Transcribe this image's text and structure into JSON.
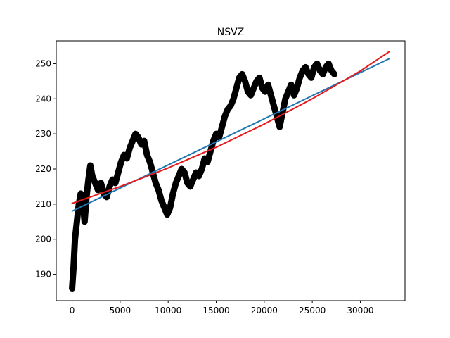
{
  "chart_data": {
    "type": "line",
    "title": "NSVZ",
    "xlabel": "",
    "ylabel": "",
    "xlim": [
      -1650,
      34650
    ],
    "ylim": [
      182.5,
      256.5
    ],
    "xticks": [
      0,
      5000,
      10000,
      15000,
      20000,
      25000,
      30000
    ],
    "yticks": [
      190,
      200,
      210,
      220,
      230,
      240,
      250
    ],
    "grid": false,
    "legend": "none",
    "series": [
      {
        "style": "thick-black-data",
        "color": "#000000",
        "x": [
          0,
          150,
          300,
          500,
          700,
          900,
          1100,
          1300,
          1500,
          1700,
          1900,
          2100,
          2400,
          2700,
          3000,
          3300,
          3600,
          3900,
          4200,
          4500,
          4800,
          5100,
          5400,
          5700,
          6000,
          6300,
          6600,
          6900,
          7200,
          7500,
          7800,
          8100,
          8400,
          8700,
          9000,
          9300,
          9600,
          9900,
          10200,
          10500,
          10800,
          11100,
          11400,
          11700,
          12000,
          12300,
          12600,
          12900,
          13200,
          13500,
          13800,
          14100,
          14400,
          14700,
          15000,
          15300,
          15600,
          15900,
          16200,
          16500,
          16800,
          17100,
          17400,
          17700,
          18000,
          18300,
          18600,
          18900,
          19200,
          19500,
          19800,
          20100,
          20400,
          20700,
          21000,
          21300,
          21600,
          21900,
          22200,
          22500,
          22800,
          23100,
          23400,
          23700,
          24000,
          24300,
          24600,
          24900,
          25200,
          25500,
          25800,
          26100,
          26400,
          26700,
          27000,
          27300
        ],
        "y": [
          186,
          192,
          200,
          205,
          210,
          213,
          211,
          205,
          212,
          217,
          221,
          218,
          216,
          214,
          216,
          213,
          212,
          215,
          217,
          216,
          219,
          222,
          224,
          223,
          226,
          228,
          230,
          229,
          227,
          228,
          224,
          222,
          219,
          216,
          214,
          211,
          209,
          207,
          209,
          213,
          216,
          218,
          220,
          219,
          216,
          215,
          217,
          219,
          218,
          220,
          223,
          222,
          225,
          228,
          230,
          229,
          232,
          235,
          237,
          238,
          240,
          243,
          246,
          247,
          245,
          242,
          241,
          243,
          245,
          246,
          243,
          242,
          244,
          241,
          238,
          235,
          232,
          236,
          240,
          242,
          244,
          241,
          243,
          246,
          248,
          249,
          247,
          246,
          249,
          250,
          248,
          247,
          249,
          250,
          248,
          247
        ]
      },
      {
        "style": "fit-line",
        "color": "#1f77b4",
        "x": [
          0,
          33000
        ],
        "y": [
          208.0,
          251.4
        ]
      },
      {
        "style": "fit-curve",
        "color": "#e41a1c",
        "x": [
          0,
          5000,
          10000,
          15000,
          20000,
          25000,
          30000,
          33000
        ],
        "y": [
          210.2,
          215.0,
          220.3,
          226.2,
          232.8,
          240.0,
          247.9,
          253.4
        ]
      }
    ]
  }
}
